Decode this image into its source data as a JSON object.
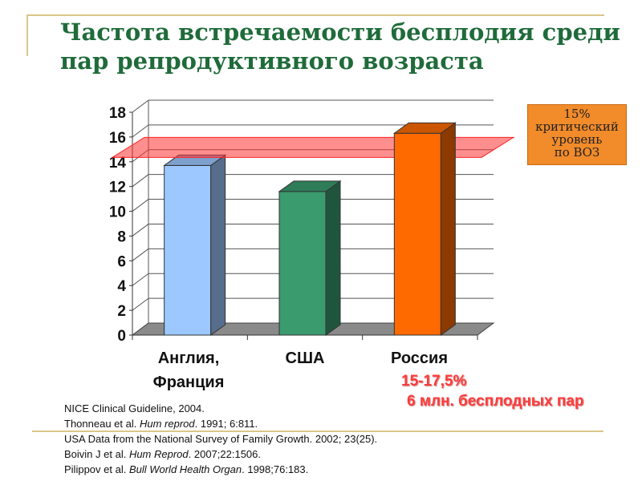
{
  "title_lines": [
    "Частота встречаемости бесплодия среди",
    "пар репродуктивного возраста"
  ],
  "chart_data": {
    "type": "bar",
    "categories": [
      "Англия, Франция",
      "США",
      "Россия"
    ],
    "category_lines": [
      [
        "Англия,",
        "Франция"
      ],
      [
        "США"
      ],
      [
        "Россия"
      ]
    ],
    "values": [
      13.7,
      11.6,
      16.3
    ],
    "colors": [
      "#9cc8ff",
      "#3a9b6e",
      "#ff6a00"
    ],
    "ylim": [
      0,
      18
    ],
    "yticks": [
      "0",
      "2",
      "4",
      "6",
      "8",
      "10",
      "12",
      "14",
      "16",
      "18"
    ],
    "grid": true,
    "threshold": {
      "value": 15,
      "color": "#ff3333"
    }
  },
  "who_box_lines": [
    "15%",
    "критический",
    "уровень",
    "по ВОЗ"
  ],
  "notes": {
    "line1": "15-17,5%",
    "line2": "6 млн. бесплодных пар"
  },
  "refs": [
    {
      "pre": "NICE Clinical Guideline, 2004.",
      "ital": "",
      "post": ""
    },
    {
      "pre": "Thonneau et al. ",
      "ital": "Hum reprod",
      "post": ". 1991; 6:811."
    },
    {
      "pre": "USA Data from the National Survey of Family Growth. 2002; 23(25).",
      "ital": "",
      "post": ""
    },
    {
      "pre": "Boivin J et al. ",
      "ital": "Hum Reprod",
      "post": ". 2007;22:1506."
    },
    {
      "pre": "Pilippov et al. ",
      "ital": "Bull World Health Organ",
      "post": ". 1998;76:183."
    }
  ]
}
